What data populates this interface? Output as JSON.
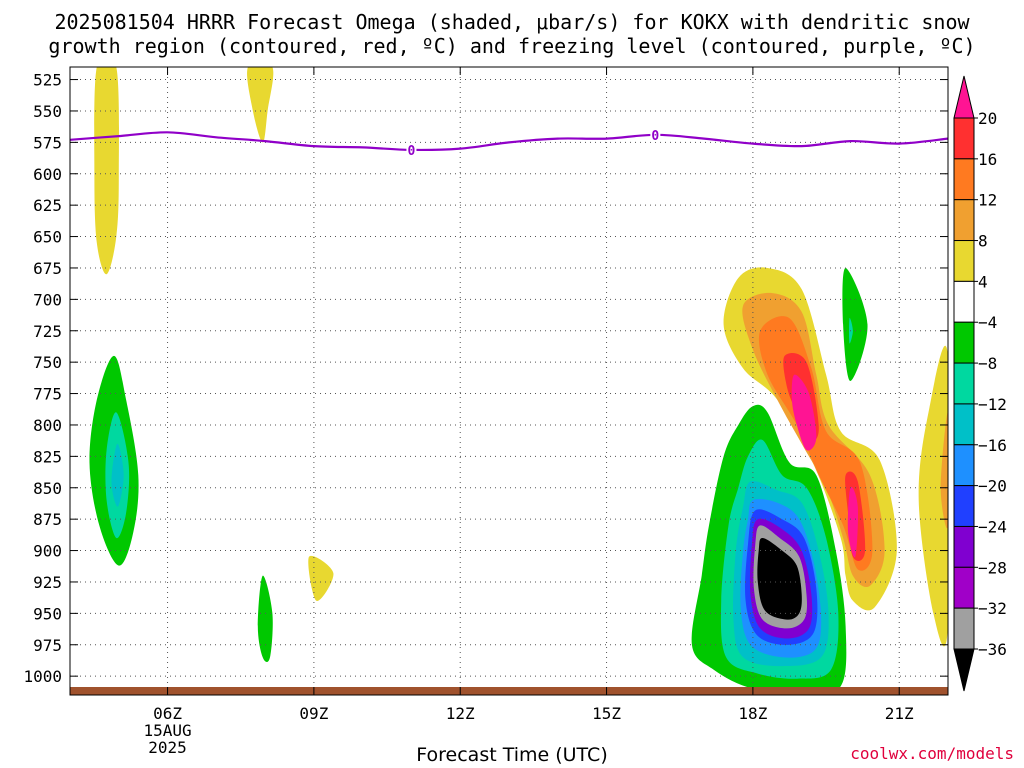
{
  "title_line1": "2025081504 HRRR Forecast Omega (shaded, μbar/s) for KOKX with dendritic snow",
  "title_line2": "growth region (contoured, red, ºC) and freezing level (contoured, purple, ºC)",
  "xlabel": "Forecast Time (UTC)",
  "credit": "coolwx.com/models",
  "chart_data": {
    "type": "heatmap",
    "title": "2025081504 HRRR Forecast Omega (shaded, μbar/s) for KOKX with dendritic snow growth region (contoured, red, ºC) and freezing level (contoured, purple, ºC)",
    "xlabel": "Forecast Time (UTC)",
    "ylabel": "",
    "x_ticks": [
      {
        "hour": 6,
        "label": "06Z",
        "sub1": "15AUG",
        "sub2": "2025"
      },
      {
        "hour": 9,
        "label": "09Z"
      },
      {
        "hour": 12,
        "label": "12Z"
      },
      {
        "hour": 15,
        "label": "15Z"
      },
      {
        "hour": 18,
        "label": "18Z"
      },
      {
        "hour": 21,
        "label": "21Z"
      }
    ],
    "xlim": [
      4,
      22
    ],
    "y_ticks": [
      525,
      550,
      575,
      600,
      625,
      650,
      675,
      700,
      725,
      750,
      775,
      800,
      825,
      850,
      875,
      900,
      925,
      950,
      975,
      1000
    ],
    "ylim": [
      515,
      1015
    ],
    "colorbar": {
      "labels": [
        "20",
        "16",
        "12",
        "8",
        "4",
        "−4",
        "−8",
        "−12",
        "−16",
        "−20",
        "−24",
        "−28",
        "−32",
        "−36"
      ],
      "colors": [
        "#ff1493",
        "#ff3030",
        "#ff7a20",
        "#f0a030",
        "#e8d830",
        "#ffffff",
        "#00c800",
        "#00d8a0",
        "#00c0c8",
        "#1e90ff",
        "#2040ff",
        "#8000d0",
        "#a000c8",
        "#a0a0a0",
        "#000000"
      ]
    },
    "freezing_level": {
      "color": "#9000c8",
      "label": "0",
      "points": [
        [
          4,
          573
        ],
        [
          5,
          570
        ],
        [
          6,
          567
        ],
        [
          7,
          571
        ],
        [
          8,
          574
        ],
        [
          9,
          578
        ],
        [
          10,
          579
        ],
        [
          11,
          581
        ],
        [
          12,
          580
        ],
        [
          13,
          575
        ],
        [
          14,
          572
        ],
        [
          15,
          572
        ],
        [
          16,
          569
        ],
        [
          17,
          572
        ],
        [
          18,
          576
        ],
        [
          19,
          578
        ],
        [
          20,
          574
        ],
        [
          21,
          576
        ],
        [
          22,
          572
        ]
      ],
      "label_points": [
        [
          11,
          581
        ],
        [
          16,
          569
        ]
      ]
    },
    "ground_color": "#a0522d",
    "omega_regions": [
      {
        "color": "#e8d830",
        "value": "4 to 8",
        "points": [
          [
            4.55,
            515
          ],
          [
            4.95,
            515
          ],
          [
            5.0,
            600
          ],
          [
            4.95,
            650
          ],
          [
            4.75,
            680
          ],
          [
            4.55,
            655
          ],
          [
            4.5,
            600
          ]
        ]
      },
      {
        "color": "#e8d830",
        "value": "4 to 8",
        "points": [
          [
            7.65,
            515
          ],
          [
            8.15,
            515
          ],
          [
            8.05,
            550
          ],
          [
            7.95,
            575
          ],
          [
            7.75,
            550
          ]
        ]
      },
      {
        "color": "#e8d830",
        "value": "4 to 8",
        "points": [
          [
            8.9,
            905
          ],
          [
            9.4,
            918
          ],
          [
            9.05,
            940
          ]
        ]
      },
      {
        "color": "#00c800",
        "value": "-4 to -8",
        "points": [
          [
            4.9,
            745
          ],
          [
            5.15,
            780
          ],
          [
            5.4,
            840
          ],
          [
            5.3,
            885
          ],
          [
            5.0,
            912
          ],
          [
            4.6,
            880
          ],
          [
            4.4,
            830
          ],
          [
            4.55,
            780
          ]
        ]
      },
      {
        "color": "#00d8a0",
        "value": "-8 to -12",
        "points": [
          [
            4.95,
            790
          ],
          [
            5.2,
            830
          ],
          [
            5.15,
            870
          ],
          [
            4.95,
            890
          ],
          [
            4.75,
            860
          ],
          [
            4.75,
            820
          ]
        ]
      },
      {
        "color": "#00c0c8",
        "value": "-12 to -16",
        "points": [
          [
            4.97,
            815
          ],
          [
            5.1,
            840
          ],
          [
            4.98,
            865
          ],
          [
            4.85,
            845
          ]
        ]
      },
      {
        "color": "#00c800",
        "value": "-4 to -8",
        "points": [
          [
            7.95,
            920
          ],
          [
            8.15,
            950
          ],
          [
            8.1,
            985
          ],
          [
            7.95,
            985
          ],
          [
            7.85,
            960
          ]
        ]
      },
      {
        "color": "#00c800",
        "value": "-4 to -8",
        "points": [
          [
            19.9,
            675
          ],
          [
            20.35,
            720
          ],
          [
            20.0,
            765
          ],
          [
            19.85,
            720
          ]
        ]
      },
      {
        "color": "#00d8a0",
        "value": "-8 to -12",
        "points": [
          [
            19.98,
            715
          ],
          [
            20.05,
            725
          ],
          [
            19.98,
            735
          ]
        ]
      },
      {
        "color": "#e8d830",
        "value": "4 to 8",
        "points": [
          [
            17.4,
            720
          ],
          [
            17.7,
            683
          ],
          [
            18.3,
            675
          ],
          [
            19.0,
            692
          ],
          [
            19.5,
            760
          ],
          [
            19.8,
            805
          ],
          [
            20.6,
            828
          ],
          [
            20.95,
            900
          ],
          [
            20.5,
            945
          ],
          [
            20.05,
            940
          ],
          [
            19.9,
            920
          ],
          [
            19.8,
            890
          ],
          [
            19.25,
            832
          ],
          [
            18.5,
            780
          ],
          [
            17.8,
            755
          ]
        ]
      },
      {
        "color": "#f0a030",
        "value": "8 to 12",
        "points": [
          [
            17.8,
            705
          ],
          [
            18.4,
            695
          ],
          [
            19.0,
            710
          ],
          [
            19.3,
            760
          ],
          [
            19.55,
            800
          ],
          [
            20.4,
            840
          ],
          [
            20.7,
            900
          ],
          [
            20.4,
            928
          ],
          [
            20.05,
            920
          ],
          [
            19.85,
            890
          ],
          [
            19.5,
            850
          ],
          [
            19.0,
            815
          ],
          [
            18.5,
            780
          ],
          [
            18.0,
            740
          ]
        ]
      },
      {
        "color": "#ff7a20",
        "value": "12 to 16",
        "points": [
          [
            18.15,
            725
          ],
          [
            18.75,
            715
          ],
          [
            19.2,
            755
          ],
          [
            19.5,
            805
          ],
          [
            20.2,
            830
          ],
          [
            20.45,
            900
          ],
          [
            20.15,
            915
          ],
          [
            19.85,
            880
          ],
          [
            19.35,
            840
          ],
          [
            18.9,
            800
          ],
          [
            18.3,
            760
          ]
        ]
      },
      {
        "color": "#ff3030",
        "value": "16 to 20",
        "points": [
          [
            18.65,
            745
          ],
          [
            19.1,
            750
          ],
          [
            19.35,
            800
          ],
          [
            19.2,
            812
          ],
          [
            18.9,
            790
          ],
          [
            18.7,
            770
          ]
        ]
      },
      {
        "color": "#ff3030",
        "value": "16 to 20",
        "points": [
          [
            19.9,
            840
          ],
          [
            20.15,
            845
          ],
          [
            20.3,
            900
          ],
          [
            20.05,
            905
          ],
          [
            19.95,
            870
          ]
        ]
      },
      {
        "color": "#ff1493",
        "value": "> 20",
        "points": [
          [
            18.85,
            760
          ],
          [
            19.15,
            775
          ],
          [
            19.3,
            810
          ],
          [
            19.1,
            820
          ],
          [
            18.9,
            800
          ],
          [
            18.8,
            780
          ]
        ]
      },
      {
        "color": "#ff1493",
        "value": "> 20",
        "points": [
          [
            20.0,
            850
          ],
          [
            20.15,
            865
          ],
          [
            20.1,
            905
          ],
          [
            19.95,
            885
          ]
        ]
      },
      {
        "color": "#e8d830",
        "value": "4 to 8",
        "points": [
          [
            22.0,
            745
          ],
          [
            21.6,
            790
          ],
          [
            21.4,
            860
          ],
          [
            21.7,
            950
          ],
          [
            22.0,
            960
          ]
        ]
      },
      {
        "color": "#f0a030",
        "value": "8 to 12",
        "points": [
          [
            22.0,
            790
          ],
          [
            21.85,
            850
          ],
          [
            22.0,
            880
          ]
        ]
      },
      {
        "color": "#00c800",
        "value": "-4 to -8",
        "points": [
          [
            17.7,
            800
          ],
          [
            18.0,
            785
          ],
          [
            18.3,
            790
          ],
          [
            18.75,
            830
          ],
          [
            19.3,
            840
          ],
          [
            19.7,
            900
          ],
          [
            19.9,
            960
          ],
          [
            19.8,
            1008
          ],
          [
            19.0,
            1012
          ],
          [
            18.0,
            1010
          ],
          [
            17.2,
            995
          ],
          [
            16.75,
            975
          ],
          [
            16.95,
            920
          ],
          [
            17.1,
            880
          ],
          [
            17.4,
            825
          ]
        ]
      },
      {
        "color": "#00d8a0",
        "value": "-8 to -12",
        "points": [
          [
            17.9,
            825
          ],
          [
            18.2,
            812
          ],
          [
            18.6,
            840
          ],
          [
            19.1,
            850
          ],
          [
            19.5,
            890
          ],
          [
            19.75,
            950
          ],
          [
            19.6,
            995
          ],
          [
            18.9,
            1002
          ],
          [
            18.1,
            998
          ],
          [
            17.45,
            985
          ],
          [
            17.35,
            940
          ],
          [
            17.5,
            880
          ],
          [
            17.7,
            850
          ]
        ]
      },
      {
        "color": "#00c0c8",
        "value": "-12 to -16",
        "points": [
          [
            17.95,
            845
          ],
          [
            18.5,
            852
          ],
          [
            19.0,
            862
          ],
          [
            19.35,
            900
          ],
          [
            19.55,
            950
          ],
          [
            19.4,
            985
          ],
          [
            18.6,
            992
          ],
          [
            17.8,
            985
          ],
          [
            17.6,
            955
          ],
          [
            17.65,
            900
          ],
          [
            17.8,
            865
          ]
        ]
      },
      {
        "color": "#1e90ff",
        "value": "-16 to -20",
        "points": [
          [
            18.0,
            860
          ],
          [
            18.5,
            862
          ],
          [
            18.95,
            875
          ],
          [
            19.25,
            910
          ],
          [
            19.4,
            955
          ],
          [
            19.25,
            980
          ],
          [
            18.6,
            985
          ],
          [
            17.95,
            975
          ],
          [
            17.75,
            945
          ],
          [
            17.8,
            900
          ],
          [
            17.9,
            875
          ]
        ]
      },
      {
        "color": "#2040ff",
        "value": "-20 to -24",
        "points": [
          [
            18.05,
            868
          ],
          [
            18.6,
            875
          ],
          [
            19.05,
            890
          ],
          [
            19.3,
            930
          ],
          [
            19.25,
            965
          ],
          [
            18.75,
            975
          ],
          [
            18.1,
            968
          ],
          [
            17.85,
            940
          ],
          [
            17.9,
            895
          ]
        ]
      },
      {
        "color": "#8000d0",
        "value": "-24 to -28",
        "points": [
          [
            18.1,
            875
          ],
          [
            18.6,
            883
          ],
          [
            19.0,
            900
          ],
          [
            19.2,
            935
          ],
          [
            19.15,
            962
          ],
          [
            18.7,
            970
          ],
          [
            18.15,
            962
          ],
          [
            17.95,
            935
          ],
          [
            17.98,
            895
          ]
        ]
      },
      {
        "color": "#a0a0a0",
        "value": "-28 to -32",
        "points": [
          [
            18.15,
            880
          ],
          [
            18.55,
            890
          ],
          [
            18.95,
            905
          ],
          [
            19.1,
            935
          ],
          [
            19.05,
            955
          ],
          [
            18.7,
            962
          ],
          [
            18.2,
            955
          ],
          [
            18.02,
            930
          ],
          [
            18.05,
            895
          ]
        ]
      },
      {
        "color": "#000000",
        "value": "< -32",
        "points": [
          [
            18.2,
            890
          ],
          [
            18.6,
            900
          ],
          [
            18.9,
            912
          ],
          [
            19.0,
            935
          ],
          [
            18.95,
            950
          ],
          [
            18.7,
            955
          ],
          [
            18.25,
            948
          ],
          [
            18.1,
            925
          ],
          [
            18.12,
            900
          ]
        ]
      }
    ]
  }
}
